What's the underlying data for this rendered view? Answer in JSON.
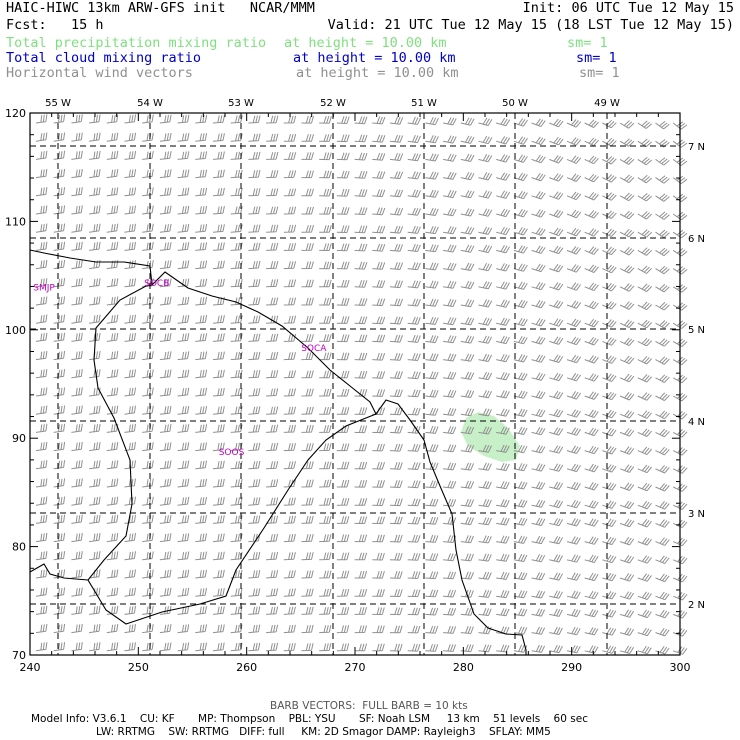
{
  "header": {
    "title": "HAIC-HIWC 13km ARW-GFS init   NCAR/MMM",
    "init": "Init: 06 UTC Tue 12 May 15",
    "fcst": "Fcst:   15 h",
    "valid": "Valid: 21 UTC Tue 12 May 15 (18 LST Tue 12 May 15)",
    "fields": [
      {
        "name": "Total precipitation mixing ratio",
        "level": "at height = 10.00 km",
        "sm": "sm= 1",
        "color": "#7fe07f"
      },
      {
        "name": "Total cloud mixing ratio",
        "level": "at height = 10.00 km",
        "sm": "sm= 1",
        "color": "#0000c8"
      },
      {
        "name": "Horizontal wind vectors",
        "level": "at height = 10.00 km",
        "sm": "sm= 1",
        "color": "#909090"
      }
    ]
  },
  "map": {
    "x_ticks": [
      "240",
      "250",
      "260",
      "270",
      "280",
      "290",
      "300"
    ],
    "y_ticks": [
      "70",
      "80",
      "90",
      "100",
      "110",
      "120"
    ],
    "lon_labels": [
      "55 W",
      "54 W",
      "53 W",
      "52 W",
      "51 W",
      "50 W",
      "49 W"
    ],
    "lat_labels": [
      "7 N",
      "6 N",
      "5 N",
      "4 N",
      "3 N",
      "2 N"
    ],
    "stations": [
      {
        "id": "SMJP",
        "x": 241.3,
        "y": 104.0
      },
      {
        "id": "SOCB",
        "x": 251.7,
        "y": 104.4
      },
      {
        "id": "SOCA",
        "x": 266.2,
        "y": 98.4
      },
      {
        "id": "SOOS",
        "x": 258.6,
        "y": 88.8
      }
    ],
    "colors": {
      "coast": "#000000",
      "grid": "#000000",
      "barb": "#909090",
      "station": "#c000c0",
      "precip": "#c8f0c8"
    }
  },
  "footer": {
    "barb_note": "BARB VECTORS:  FULL BARB = 10 kts",
    "line1": "Model Info: V3.6.1    CU: KF       MP: Thompson    PBL: YSU       SF: Noah LSM     13 km    51 levels    60 sec",
    "line2": "LW: RRTMG    SW: RRTMG   DIFF: full     KM: 2D Smagor DAMP: Rayleigh3    SFLAY: MM5"
  }
}
